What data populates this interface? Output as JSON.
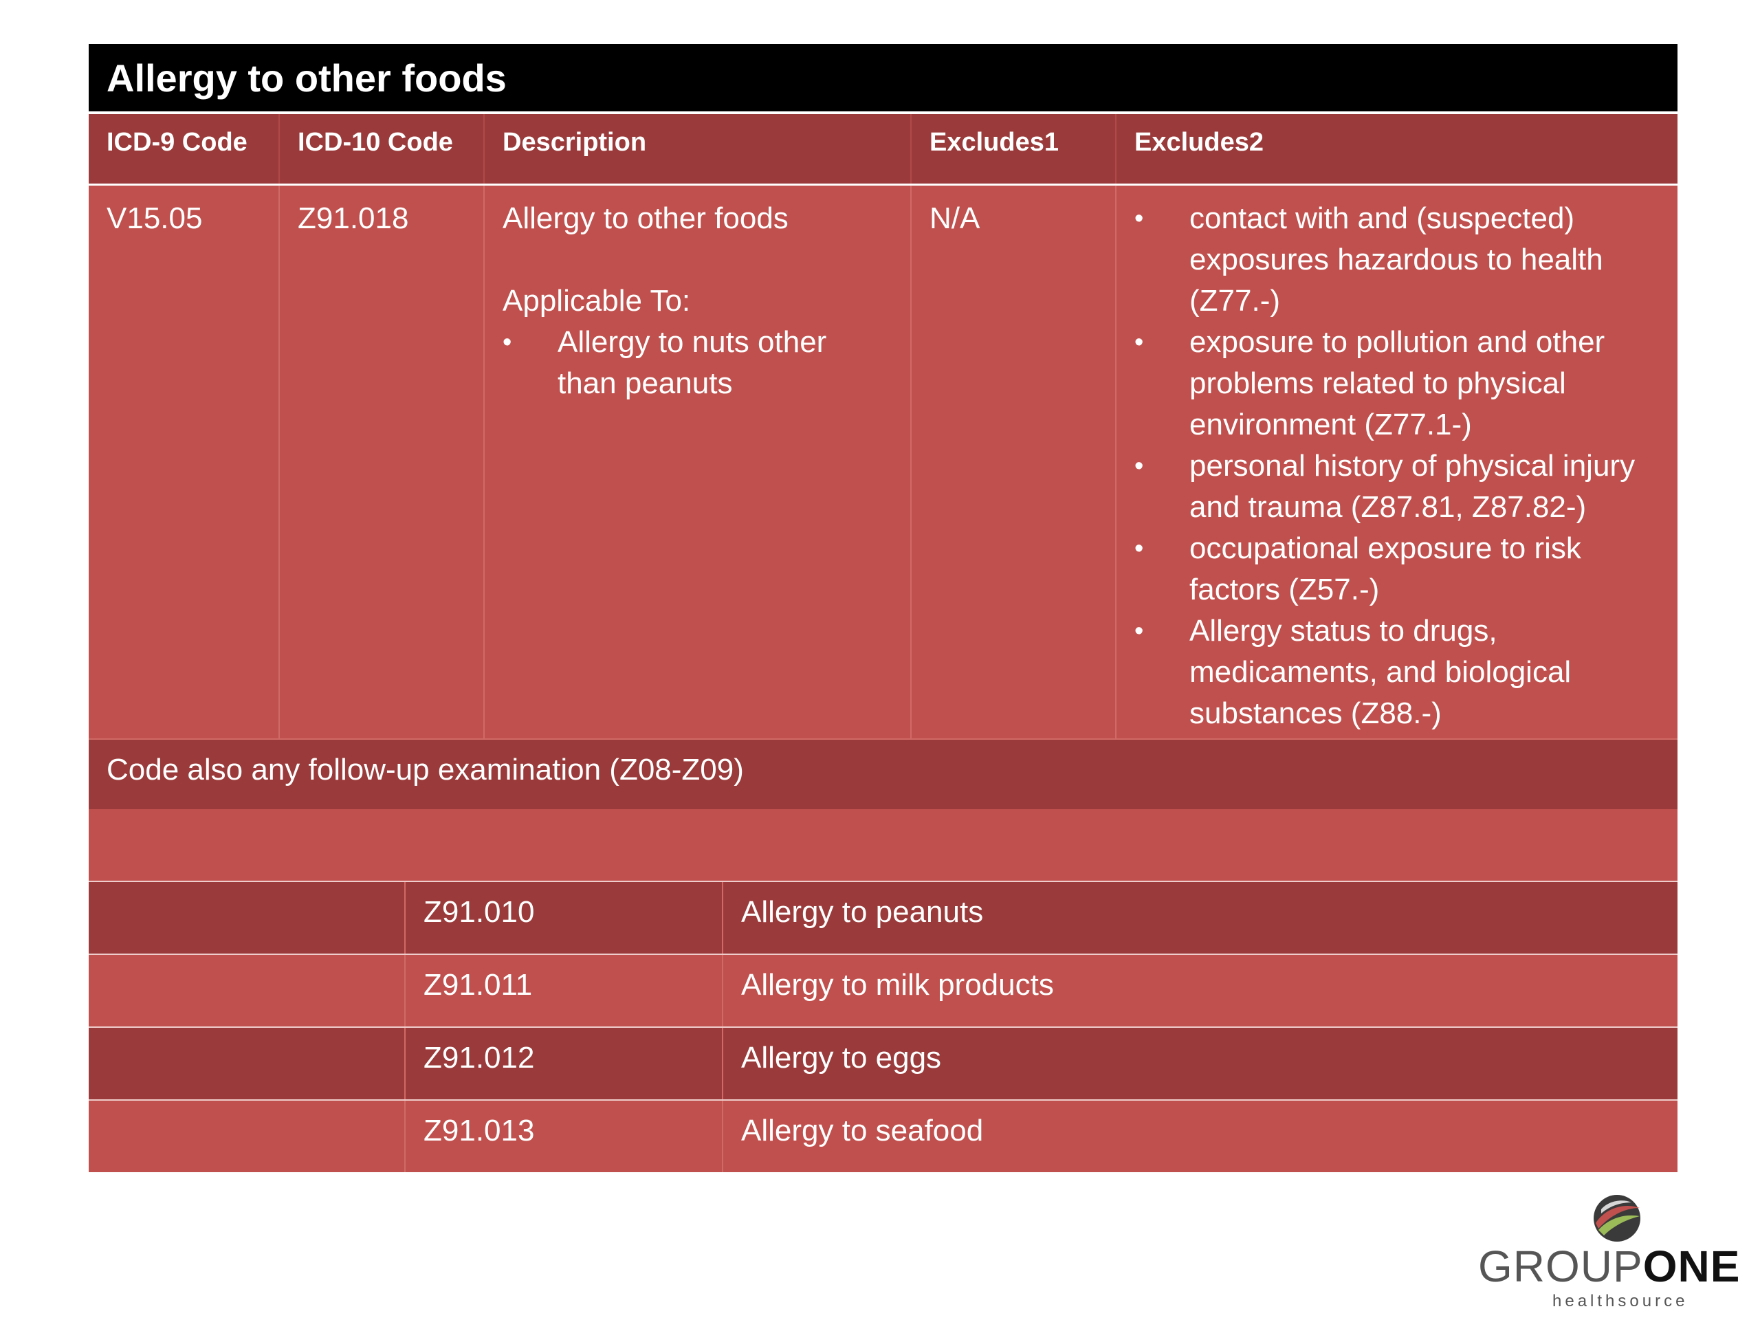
{
  "title": "Allergy to other foods",
  "headers": [
    "ICD-9 Code",
    "ICD-10 Code",
    "Description",
    "Excludes1",
    "Excludes2"
  ],
  "main_row": {
    "icd9": "V15.05",
    "icd10": "Z91.018",
    "description": "Allergy to other foods",
    "applicable_label": "Applicable To:",
    "applicable_items": [
      "Allergy to nuts other than peanuts"
    ],
    "excludes1": "N/A",
    "excludes2": [
      "contact with and (suspected) exposures hazardous to health (Z77.-)",
      "exposure to pollution and other problems related to physical environment (Z77.1-)",
      "personal history of physical injury and trauma (Z87.81, Z87.82-)",
      "occupational exposure to risk factors (Z57.-)",
      "Allergy status to drugs, medicaments, and biological substances (Z88.-)"
    ]
  },
  "note": "Code also any follow-up examination (Z08-Z09)",
  "sub_codes": [
    {
      "code": "Z91.010",
      "description": "Allergy to peanuts"
    },
    {
      "code": "Z91.011",
      "description": "Allergy to milk products"
    },
    {
      "code": "Z91.012",
      "description": "Allergy to eggs"
    },
    {
      "code": "Z91.013",
      "description": "Allergy to seafood"
    }
  ],
  "logo": {
    "text_light": "GROUP",
    "text_bold": "ONE",
    "subtext": "healthsource"
  },
  "colors": {
    "title_bg": "#000000",
    "dark_red": "#9a3a3a",
    "light_red": "#c0504d"
  }
}
